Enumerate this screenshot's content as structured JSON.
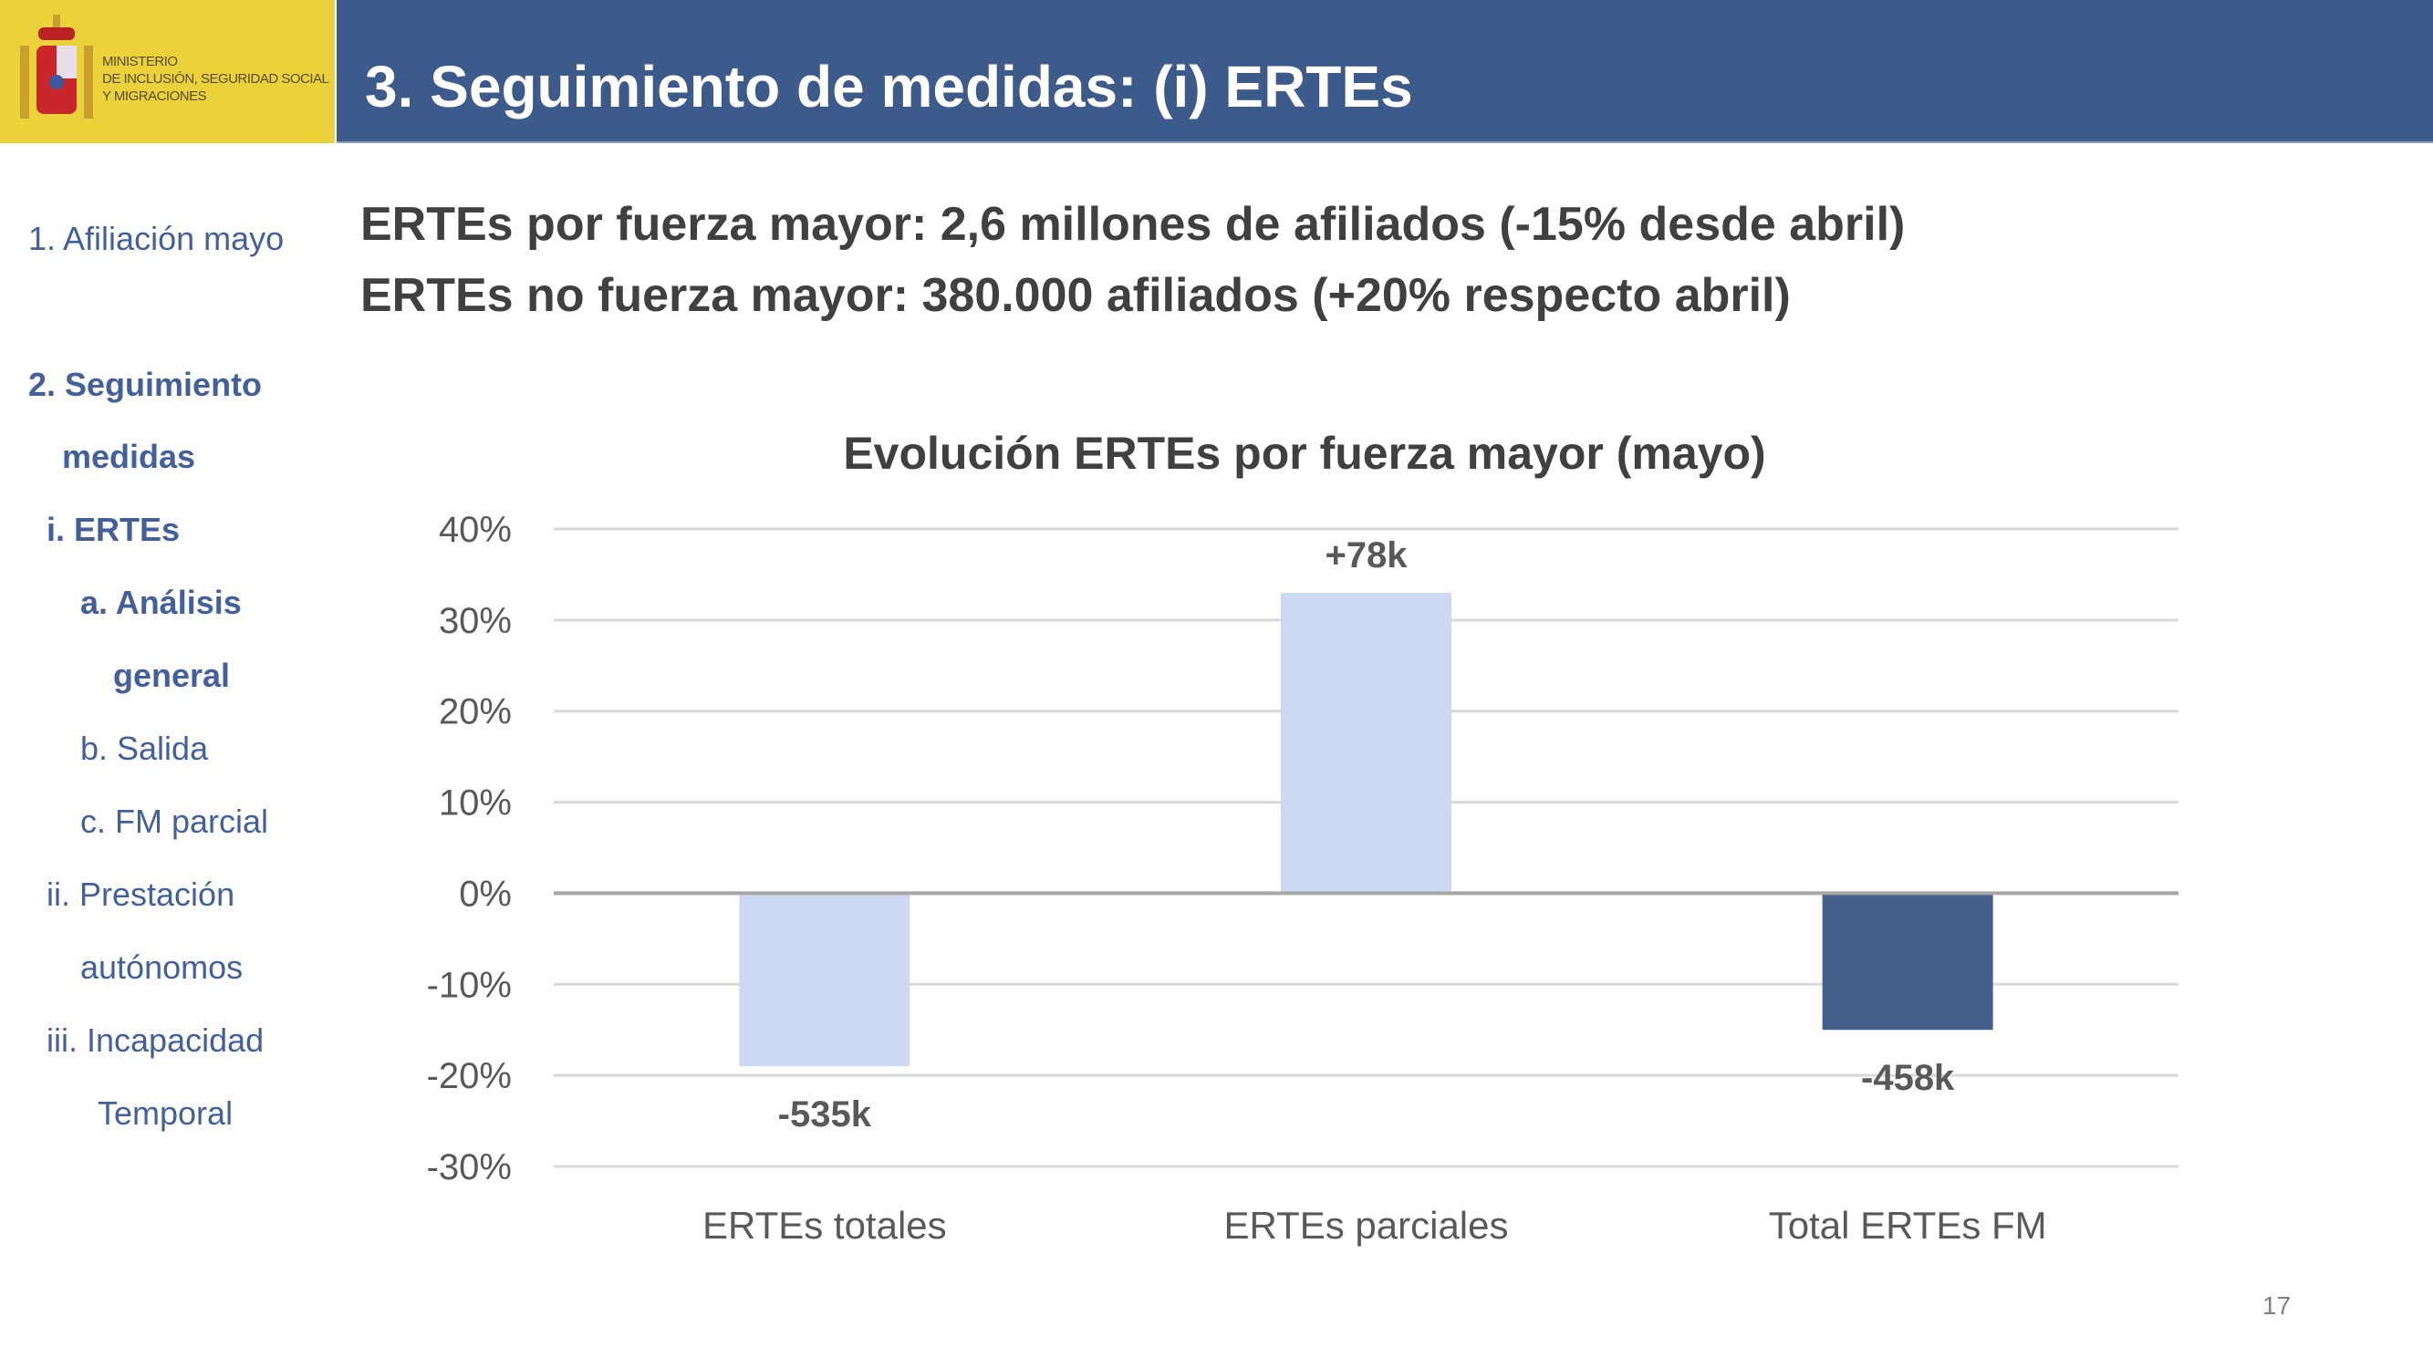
{
  "logo": {
    "lines": [
      "MINISTERIO",
      "DE INCLUSIÓN, SEGURIDAD SOCIAL",
      "Y MIGRACIONES"
    ],
    "icon": "coat-of-arms-spain",
    "color": "#ecd23a"
  },
  "header": {
    "title": "3. Seguimiento de medidas: (i) ERTEs",
    "color": "#3c5a8a"
  },
  "sidebar": {
    "color": "#44609a",
    "items": [
      {
        "label": "1. Afiliación mayo",
        "bold": false
      },
      {
        "label": "2. Seguimiento",
        "bold": true
      },
      {
        "label": "medidas",
        "bold": true
      },
      {
        "label": "i.   ERTEs",
        "bold": true
      },
      {
        "label": "a. Análisis",
        "bold": true
      },
      {
        "label": "general",
        "bold": true
      },
      {
        "label": "b. Salida",
        "bold": false
      },
      {
        "label": "c. FM parcial",
        "bold": false
      },
      {
        "label": "ii.  Prestación",
        "bold": false
      },
      {
        "label": "autónomos",
        "bold": false
      },
      {
        "label": "iii.  Incapacidad",
        "bold": false
      },
      {
        "label": "Temporal",
        "bold": false
      }
    ]
  },
  "headlines": [
    "ERTEs por fuerza mayor: 2,6 millones de afiliados (-15% desde abril)",
    "ERTEs no fuerza mayor: 380.000 afiliados (+20% respecto abril)"
  ],
  "chart_data": {
    "type": "bar",
    "title": "Evolución ERTEs por fuerza mayor (mayo)",
    "categories": [
      "ERTEs totales",
      "ERTEs parciales",
      "Total ERTEs FM"
    ],
    "values": [
      -19,
      33,
      -15
    ],
    "data_labels": [
      "-535k",
      "+78k",
      "-458k"
    ],
    "colors": [
      "#cdd9f0",
      "#cdd9f0",
      "#46608c"
    ],
    "ylim": [
      -30,
      40
    ],
    "yticks": [
      40,
      30,
      20,
      10,
      0,
      -10,
      -20,
      -30
    ],
    "ytick_labels": [
      "40%",
      "30%",
      "20%",
      "10%",
      "0%",
      "-10%",
      "-20%",
      "-30%"
    ],
    "grid": true,
    "xlabel": "",
    "ylabel": ""
  },
  "page_number": "17"
}
